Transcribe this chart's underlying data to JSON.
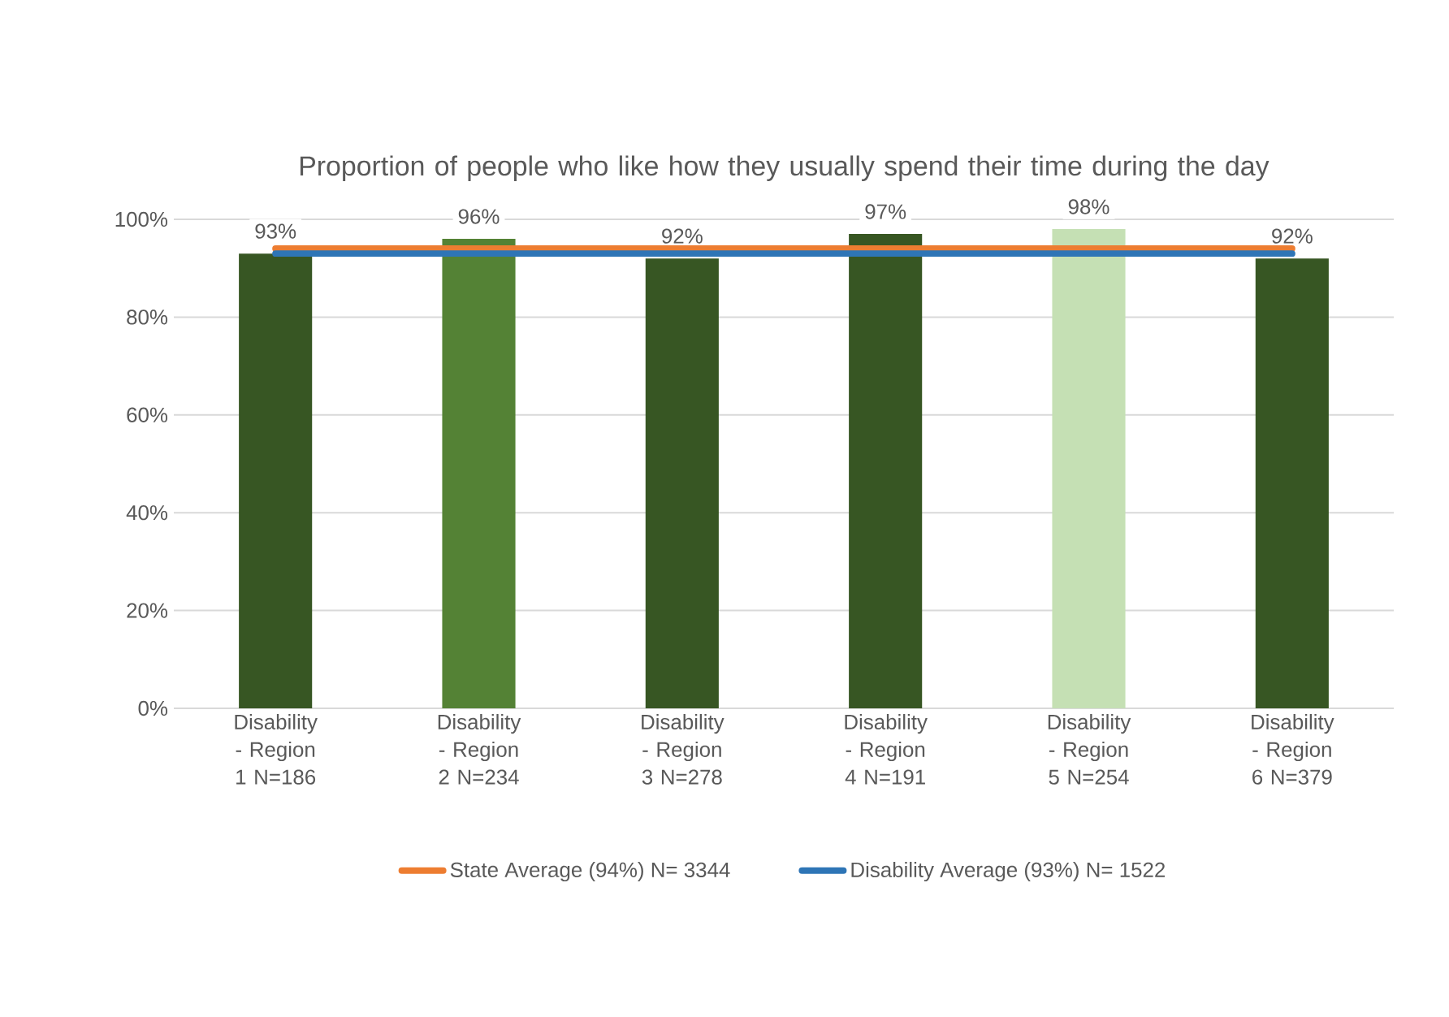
{
  "chart_data": {
    "type": "bar",
    "title": "Proportion of people who like how they usually spend their time during the day",
    "categories": [
      "Disability - Region 1 N=186",
      "Disability - Region 2 N=234",
      "Disability - Region 3 N=278",
      "Disability - Region 4 N=191",
      "Disability - Region 5 N=254",
      "Disability - Region 6 N=379"
    ],
    "series": [
      {
        "values": [
          93,
          96,
          92,
          97,
          98,
          92
        ],
        "colors": [
          "#375623",
          "#548235",
          "#375623",
          "#375623",
          "#c5e0b4",
          "#375623"
        ],
        "value_labels": [
          "93%",
          "96%",
          "92%",
          "97%",
          "98%",
          "92%"
        ]
      },
      {
        "type": "line",
        "name": "State Average (94%) N= 3344",
        "color": "#ed7d31",
        "values": [
          94,
          94,
          94,
          94,
          94,
          94
        ]
      },
      {
        "type": "line",
        "name": "Disability Average (93%) N= 1522",
        "color": "#2e75b6",
        "values": [
          93,
          93,
          93,
          93,
          93,
          93
        ]
      }
    ],
    "ylim": [
      0,
      100
    ],
    "yticks": [
      {
        "value": 0,
        "label": "0%"
      },
      {
        "value": 20,
        "label": "20%"
      },
      {
        "value": 40,
        "label": "40%"
      },
      {
        "value": 60,
        "label": "60%"
      },
      {
        "value": 80,
        "label": "80%"
      },
      {
        "value": 100,
        "label": "100%"
      }
    ],
    "grid": "y",
    "legend": "bottom"
  }
}
